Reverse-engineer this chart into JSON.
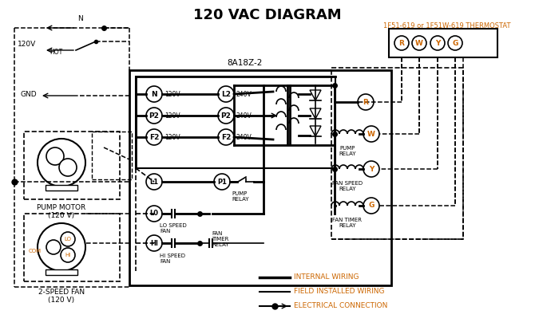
{
  "title": "120 VAC DIAGRAM",
  "title_fontsize": 13,
  "bg_color": "#ffffff",
  "black": "#000000",
  "orange": "#cc6600",
  "thermostat_label": "1F51-619 or 1F51W-619 THERMOSTAT",
  "controller_label": "8A18Z-2",
  "pump_motor_label": "PUMP MOTOR\n(120 V)",
  "fan_label": "2-SPEED FAN\n(120 V)",
  "legend_items": [
    "INTERNAL WIRING",
    "FIELD INSTALLED WIRING",
    "ELECTRICAL CONNECTION"
  ],
  "thermostat_terminals": [
    "R",
    "W",
    "Y",
    "G"
  ],
  "left_terminals": [
    "N",
    "P2",
    "F2"
  ],
  "left_voltages": [
    "120V",
    "120V",
    "120V"
  ],
  "right_terminals": [
    "L2",
    "P2",
    "F2"
  ],
  "right_voltages": [
    "240V",
    "240V",
    "240V"
  ],
  "inner_labels_left": [
    "L1",
    "L0",
    "HI"
  ],
  "inner_labels_right": [
    "P1"
  ],
  "relay_labels": [
    "R",
    "W",
    "Y",
    "G"
  ],
  "relay_coil_labels": [
    "PUMP\nRELAY",
    "FAN SPEED\nRELAY",
    "FAN TIMER\nRELAY"
  ]
}
